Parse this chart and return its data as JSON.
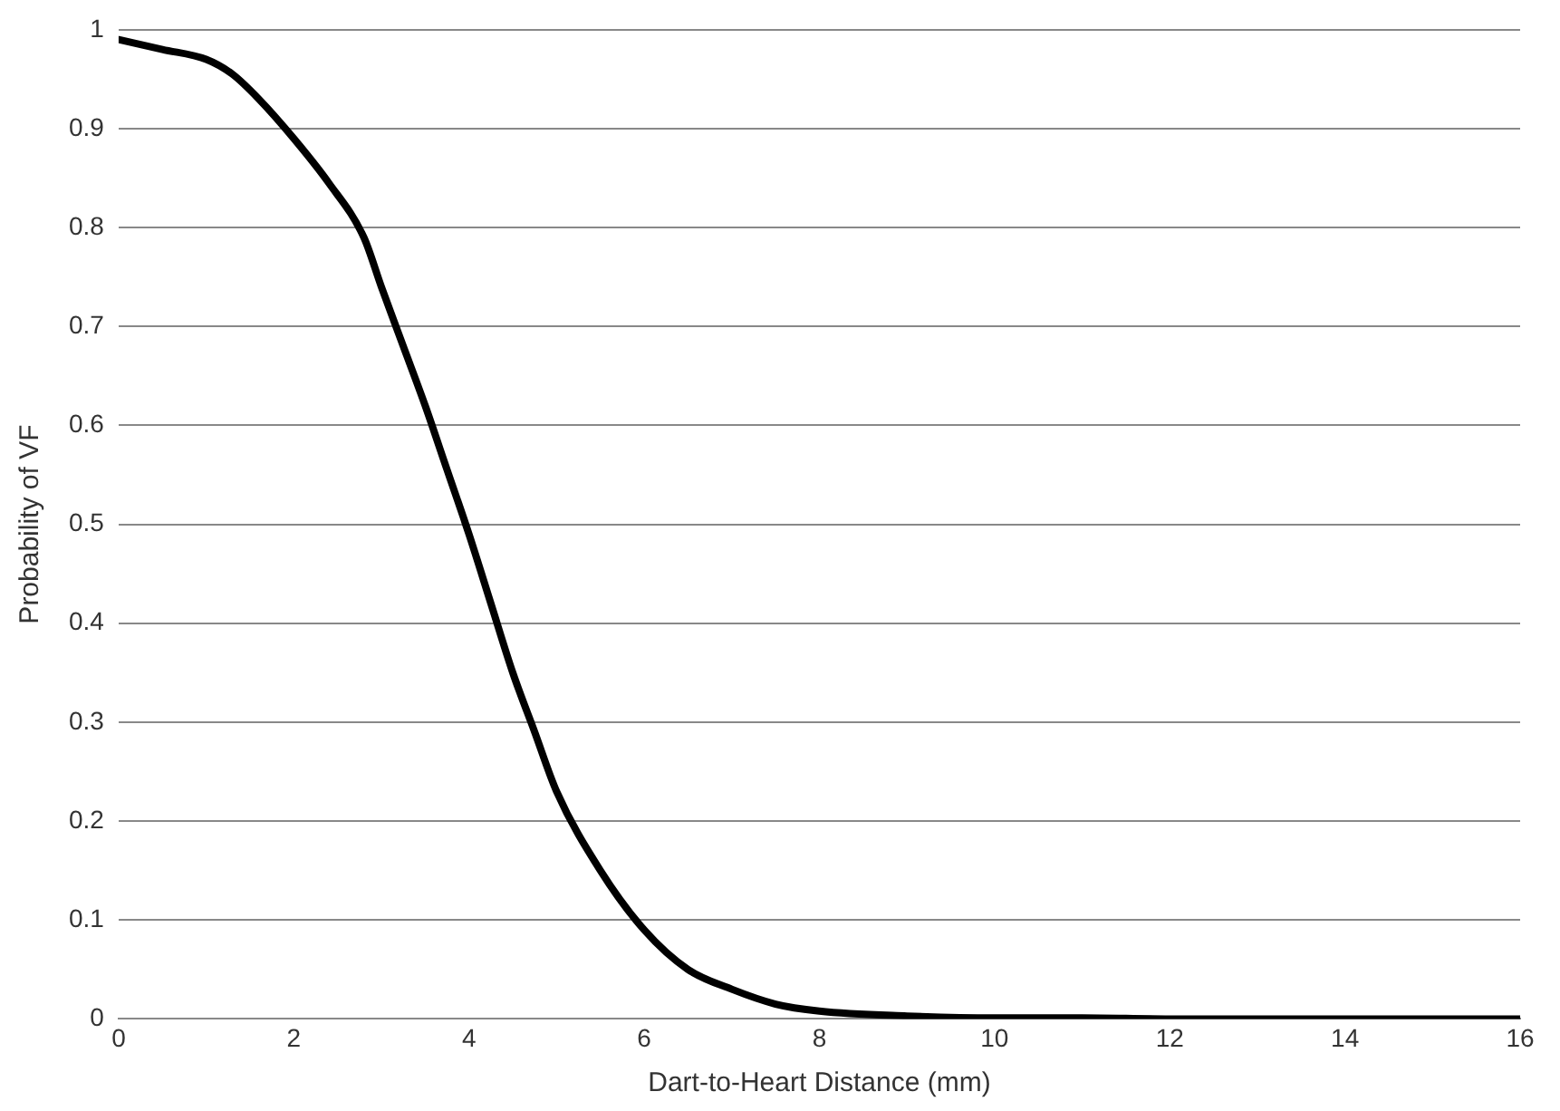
{
  "chart_data": {
    "type": "line",
    "xlabel": "Dart-to-Heart Distance (mm)",
    "ylabel": "Probability of VF",
    "series": [
      {
        "color": "#000000",
        "x": [
          0,
          0.5,
          1,
          1.3,
          1.6,
          2,
          2.4,
          2.8,
          3,
          3.25,
          3.5,
          3.75,
          4,
          4.25,
          4.5,
          4.75,
          5,
          5.5,
          6,
          6.5,
          7,
          7.5,
          8,
          9,
          10,
          11,
          12,
          14,
          16
        ],
        "values": [
          0.99,
          0.98,
          0.97,
          0.955,
          0.93,
          0.89,
          0.845,
          0.79,
          0.74,
          0.68,
          0.62,
          0.555,
          0.49,
          0.42,
          0.35,
          0.29,
          0.23,
          0.15,
          0.09,
          0.05,
          0.03,
          0.015,
          0.008,
          0.003,
          0.001,
          0.001,
          0,
          0,
          0
        ]
      }
    ],
    "xlim": [
      0,
      16
    ],
    "xticks": [
      0,
      2,
      4,
      6,
      8,
      10,
      12,
      14,
      16
    ],
    "ylim": [
      0,
      1
    ],
    "yticks": [
      0,
      0.1,
      0.2,
      0.3,
      0.4,
      0.5,
      0.6,
      0.7,
      0.8,
      0.9,
      1
    ],
    "grid": "y",
    "marker": "none",
    "line_style": "solid",
    "legend": false
  }
}
